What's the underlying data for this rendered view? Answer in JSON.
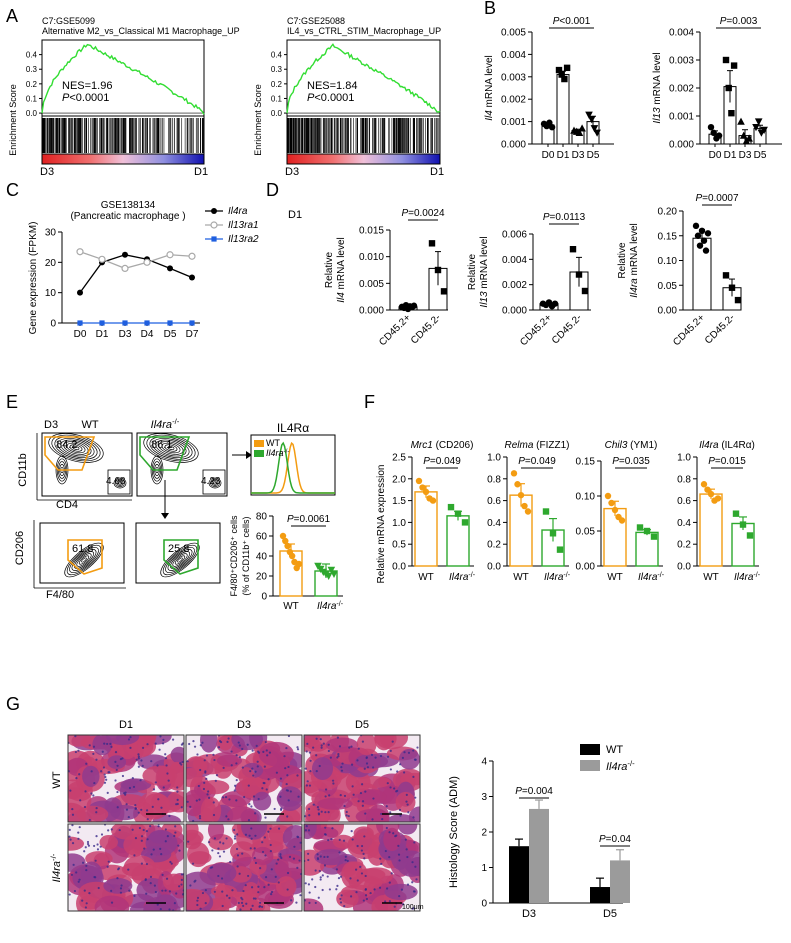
{
  "panel_letters": [
    "A",
    "B",
    "C",
    "D",
    "E",
    "F",
    "G"
  ],
  "colors": {
    "gsea_line": "#33dd33",
    "orange": "#f39c12",
    "green": "#2ea82e",
    "grey": "#a9a9a9",
    "blue": "#1f5fe0",
    "bar_black": "#000000",
    "bar_grey": "#9b9b9b"
  },
  "panel_a": {
    "plots": [
      {
        "title_lines": [
          "C7:GSE5099",
          "Alternative M2_vs_Classical M1 Macrophage_UP"
        ],
        "ylabel": "Enrichment Score",
        "nes": "NES=1.96",
        "p_prefix": "P",
        "p_value": "<0.0001",
        "ticks": [
          "0.4",
          "0.3",
          "0.2",
          "0.1",
          "0.0"
        ],
        "left_label": "D3",
        "right_label": "D1"
      },
      {
        "title_lines": [
          "C7:GSE25088",
          "IL4_vs_CTRL_STIM_Macrophage_UP"
        ],
        "ylabel": "Enrichment Score",
        "nes": "NES=1.84",
        "p_prefix": "P",
        "p_value": "<0.0001",
        "ticks": [
          "0.4",
          "0.3",
          "0.2",
          "0.1",
          "0.0"
        ],
        "left_label": "D3",
        "right_label": "D1"
      }
    ]
  },
  "panel_b": {
    "plots": [
      {
        "gene": "Il4",
        "ylabel_suffix": " mRNA level",
        "pval": "P<0.001",
        "ticks": [
          "0.005",
          "0.004",
          "0.003",
          "0.002",
          "0.001",
          "0.000"
        ]
      },
      {
        "gene": "Il13",
        "ylabel_suffix": " mRNA level",
        "pval": "P=0.003",
        "ticks": [
          "0.004",
          "0.003",
          "0.002",
          "0.001",
          "0.000"
        ]
      }
    ]
  },
  "panel_c": {
    "title_lines": [
      "GSE138134",
      "(Pancreatic macrophage )"
    ],
    "ylabel": "Gene expression (FPKM)",
    "legend": [
      "Il4ra",
      "Il13ra1",
      "Il13ra2"
    ],
    "ticks": [
      "30",
      "20",
      "10",
      "0"
    ]
  },
  "panel_d": {
    "label": "D1",
    "plots": [
      {
        "ylabel_line1": "Relative",
        "gene": "Il4",
        "ylabel_suffix": " mRNA level",
        "pval": "P=0.0024",
        "ticks": [
          "0.015",
          "0.010",
          "0.005",
          "0.000"
        ]
      },
      {
        "ylabel_line1": "Relative",
        "gene": "Il13",
        "ylabel_suffix": " mRNA level",
        "pval": "P=0.0113",
        "ticks": [
          "0.006",
          "0.004",
          "0.002",
          "0.000"
        ]
      },
      {
        "ylabel_line1": "Relative",
        "gene": "Il4ra",
        "ylabel_suffix": " mRNA level",
        "pval": "P=0.0007",
        "ticks": [
          "0.20",
          "0.15",
          "0.10",
          "0.05",
          "0.00"
        ]
      }
    ]
  },
  "panel_e": {
    "day": "D3",
    "wt": "WT",
    "ko": "Il4ra",
    "ko_sup": "-/-",
    "cd11b": "CD11b",
    "cd4": "CD4",
    "gate_wt_main": "84.2",
    "gate_wt_small": "4.68",
    "gate_ko_main": "86.1",
    "gate_ko_small": "4.23",
    "hist_title": "IL4Rα",
    "legend_wt": "WT",
    "legend_ko": "Il4ra",
    "cd206": "CD206",
    "f480": "F4/80",
    "gate_wt_bottom": "61.8",
    "gate_ko_bottom": "25.8",
    "bar_pval": "P=0.0061",
    "bar_ylabel_line1": "F4/80⁺CD206⁺ cells",
    "bar_ylabel_line2": "(% of CD11b⁺ cells)",
    "bar_ticks": [
      "80",
      "60",
      "40",
      "20",
      "0"
    ]
  },
  "panel_f": {
    "ylabel": "Relative mRNA expression",
    "plots": [
      {
        "gene": "Mrc1",
        "protein": " (CD206)",
        "pval": "P=0.049",
        "ticks": [
          "2.5",
          "2.0",
          "1.5",
          "1.0",
          "0.5",
          "0.0"
        ]
      },
      {
        "gene": "Relma",
        "protein": " (FIZZ1)",
        "pval": "P=0.049",
        "ticks": [
          "1.0",
          "0.8",
          "0.6",
          "0.4",
          "0.2",
          "0.0"
        ]
      },
      {
        "gene": "Chil3",
        "protein": " (YM1)",
        "pval": "P=0.035",
        "ticks": [
          "0.15",
          "0.10",
          "0.05",
          "0.00"
        ]
      },
      {
        "gene": "Il4ra",
        "protein": " (IL4Rα)",
        "pval": "P=0.015",
        "ticks": [
          "1.0",
          "0.8",
          "0.6",
          "0.4",
          "0.2",
          "0.0"
        ]
      }
    ]
  },
  "panel_g": {
    "columns": [
      "D1",
      "D3",
      "D5"
    ],
    "rows": [
      "WT",
      "Il4ra"
    ],
    "scale_text": "100μm",
    "legend": [
      "WT",
      "Il4ra"
    ],
    "ylabel": "Histology Score (ADM)",
    "pvals": [
      {
        "prefix": "P",
        "value": "=0.004"
      },
      {
        "prefix": "P",
        "value": "=0.04"
      }
    ],
    "ticks": [
      "4",
      "3",
      "2",
      "1",
      "0"
    ]
  },
  "chart_data": [
    {
      "type": "line",
      "panel": "B1",
      "categories": [
        "D0",
        "D1",
        "D3",
        "D5"
      ],
      "values": [
        0.00085,
        0.0031,
        0.0006,
        0.001
      ],
      "ylim": [
        0,
        0.005
      ],
      "ylabel": "Il4 mRNA level"
    },
    {
      "type": "line",
      "panel": "B2",
      "categories": [
        "D0",
        "D1",
        "D3",
        "D5"
      ],
      "values": [
        0.00035,
        0.00205,
        0.0003,
        0.00055
      ],
      "ylim": [
        0,
        0.004
      ],
      "ylabel": "Il13 mRNA level"
    },
    {
      "type": "line",
      "panel": "C",
      "categories": [
        "D0",
        "D1",
        "D3",
        "D4",
        "D5",
        "D7"
      ],
      "series": [
        {
          "name": "Il4ra",
          "values": [
            10,
            20,
            22.5,
            21,
            18,
            15
          ]
        },
        {
          "name": "Il13ra1",
          "values": [
            23.5,
            21,
            18,
            20,
            22.5,
            22
          ]
        },
        {
          "name": "Il13ra2",
          "values": [
            0,
            0,
            0,
            0,
            0,
            0
          ]
        }
      ],
      "ylim": [
        0,
        30
      ],
      "ylabel": "Gene expression (FPKM)"
    },
    {
      "type": "bar",
      "panel": "D1",
      "categories": [
        "CD45.2+",
        "CD45.2-"
      ],
      "values": [
        0.0006,
        0.0078
      ],
      "ylim": [
        0,
        0.015
      ]
    },
    {
      "type": "bar",
      "panel": "D2",
      "categories": [
        "CD45.2+",
        "CD45.2-"
      ],
      "values": [
        0.0005,
        0.003
      ],
      "ylim": [
        0,
        0.006
      ]
    },
    {
      "type": "bar",
      "panel": "D3",
      "categories": [
        "CD45.2+",
        "CD45.2-"
      ],
      "values": [
        0.145,
        0.045
      ],
      "ylim": [
        0,
        0.2
      ]
    },
    {
      "type": "bar",
      "panel": "E",
      "categories": [
        "WT",
        "Il4ra-/-"
      ],
      "values": [
        45,
        25
      ],
      "ylim": [
        0,
        80
      ]
    },
    {
      "type": "bar",
      "panel": "F1",
      "categories": [
        "WT",
        "Il4ra-/-"
      ],
      "values": [
        1.7,
        1.15
      ],
      "ylim": [
        0,
        2.5
      ]
    },
    {
      "type": "bar",
      "panel": "F2",
      "categories": [
        "WT",
        "Il4ra-/-"
      ],
      "values": [
        0.65,
        0.33
      ],
      "ylim": [
        0,
        1.0
      ]
    },
    {
      "type": "bar",
      "panel": "F3",
      "categories": [
        "WT",
        "Il4ra-/-"
      ],
      "values": [
        0.082,
        0.048
      ],
      "ylim": [
        0,
        0.15
      ]
    },
    {
      "type": "bar",
      "panel": "F4",
      "categories": [
        "WT",
        "Il4ra-/-"
      ],
      "values": [
        0.66,
        0.39
      ],
      "ylim": [
        0,
        1.0
      ]
    },
    {
      "type": "bar",
      "panel": "G",
      "categories": [
        "D3",
        "D5"
      ],
      "series": [
        {
          "name": "WT",
          "values": [
            1.6,
            0.45
          ]
        },
        {
          "name": "Il4ra-/-",
          "values": [
            2.65,
            1.2
          ]
        }
      ],
      "ylim": [
        0,
        4
      ]
    }
  ]
}
